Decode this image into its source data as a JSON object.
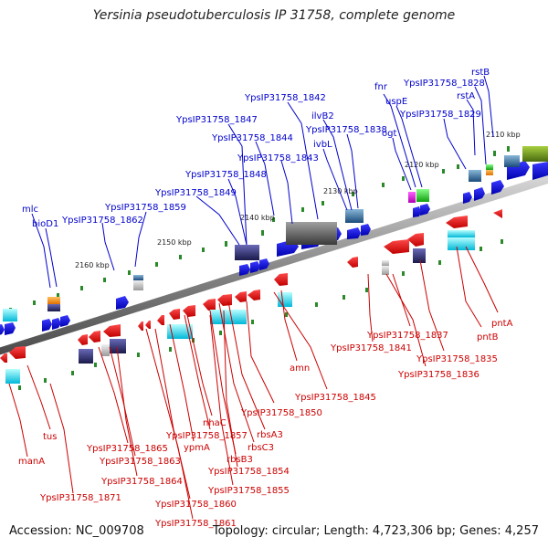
{
  "title": "Yersinia pseudotuberculosis IP 31758, complete genome",
  "footer": {
    "accession": "Accession: NC_009708",
    "summary": "Topology: circular; Length: 4,723,306 bp; Genes: 4,257"
  },
  "colors": {
    "forward_label": "#0000cc",
    "reverse_label": "#cc0000",
    "forward_gene": "#0a0aee",
    "reverse_gene": "#ee1010",
    "tick": "#2a8a2a",
    "backbone": "#8a8a8a"
  },
  "kbp_ticks": [
    "2110 kbp",
    "2120 kbp",
    "2130 kbp",
    "2140 kbp",
    "2150 kbp",
    "2160 kbp"
  ],
  "forward_labels": [
    "rstB",
    "YpsIP31758_1828",
    "rstA",
    "fnr",
    "uspE",
    "YpsIP31758_1829",
    "YpsIP31758_1842",
    "ilvB2",
    "YpsIP31758_1838",
    "ivbL",
    "ogt",
    "YpsIP31758_1847",
    "YpsIP31758_1844",
    "YpsIP31758_1843",
    "YpsIP31758_1848",
    "YpsIP31758_1849",
    "YpsIP31758_1859",
    "mlc",
    "YpsIP31758_1862",
    "bioD1"
  ],
  "reverse_labels": [
    "pntA",
    "pntB",
    "YpsIP31758_1837",
    "YpsIP31758_1835",
    "YpsIP31758_1841",
    "YpsIP31758_1836",
    "amn",
    "YpsIP31758_1845",
    "YpsIP31758_1850",
    "nhaC",
    "rbsA3",
    "YpsIP31758_1857",
    "rbsC3",
    "ypmA",
    "rbsB3",
    "YpsIP31758_1854",
    "YpsIP31758_1865",
    "YpsIP31758_1863",
    "YpsIP31758_1855",
    "YpsIP31758_1864",
    "YpsIP31758_1860",
    "YpsIP31758_1861",
    "tus",
    "YpsIP31758_1871",
    "manA"
  ]
}
